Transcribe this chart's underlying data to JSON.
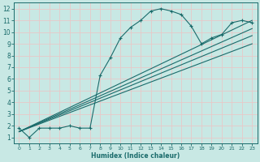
{
  "background_color": "#c8e8e4",
  "grid_color": "#e8c8c8",
  "line_color": "#1a6b6b",
  "xlabel": "Humidex (Indice chaleur)",
  "xlim": [
    -0.5,
    23.5
  ],
  "ylim": [
    0.5,
    12.5
  ],
  "xticks": [
    0,
    1,
    2,
    3,
    4,
    5,
    6,
    7,
    8,
    9,
    10,
    11,
    12,
    13,
    14,
    15,
    16,
    17,
    18,
    19,
    20,
    21,
    22,
    23
  ],
  "yticks": [
    1,
    2,
    3,
    4,
    5,
    6,
    7,
    8,
    9,
    10,
    11,
    12
  ],
  "curve_x": [
    0,
    1,
    2,
    3,
    4,
    5,
    6,
    7,
    8,
    9,
    10,
    11,
    12,
    13,
    14,
    15,
    16,
    17,
    18,
    19,
    20,
    21,
    22,
    23
  ],
  "curve_y": [
    1.8,
    1.0,
    1.8,
    1.8,
    1.8,
    2.0,
    1.8,
    1.8,
    6.3,
    7.8,
    9.5,
    10.4,
    11.0,
    11.8,
    12.0,
    11.8,
    11.5,
    10.5,
    9.0,
    9.5,
    9.8,
    10.8,
    11.0,
    10.8
  ],
  "straight_lines": [
    {
      "x0": 0,
      "y0": 1.5,
      "x1": 23,
      "y1": 11.0
    },
    {
      "x0": 0,
      "y0": 1.5,
      "x1": 23,
      "y1": 10.3
    },
    {
      "x0": 0,
      "y0": 1.5,
      "x1": 23,
      "y1": 9.7
    },
    {
      "x0": 0,
      "y0": 1.5,
      "x1": 23,
      "y1": 9.0
    }
  ]
}
